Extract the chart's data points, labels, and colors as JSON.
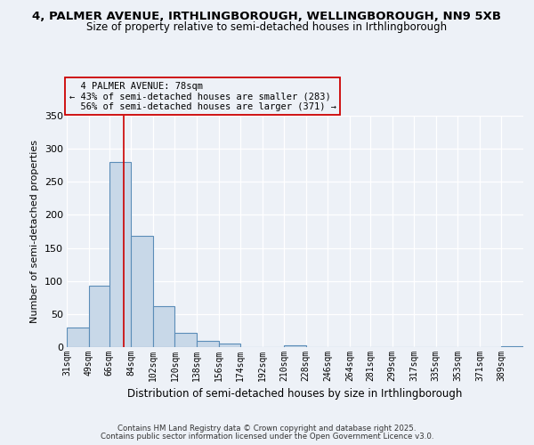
{
  "title_line1": "4, PALMER AVENUE, IRTHLINGBOROUGH, WELLINGBOROUGH, NN9 5XB",
  "title_line2": "Size of property relative to semi-detached houses in Irthlingborough",
  "xlabel": "Distribution of semi-detached houses by size in Irthlingborough",
  "ylabel": "Number of semi-detached properties",
  "bin_labels": [
    "31sqm",
    "49sqm",
    "66sqm",
    "84sqm",
    "102sqm",
    "120sqm",
    "138sqm",
    "156sqm",
    "174sqm",
    "192sqm",
    "210sqm",
    "228sqm",
    "246sqm",
    "264sqm",
    "281sqm",
    "299sqm",
    "317sqm",
    "335sqm",
    "353sqm",
    "371sqm",
    "389sqm"
  ],
  "bin_edges": [
    31,
    49,
    66,
    84,
    102,
    120,
    138,
    156,
    174,
    192,
    210,
    228,
    246,
    264,
    281,
    299,
    317,
    335,
    353,
    371,
    389
  ],
  "counts": [
    30,
    93,
    280,
    168,
    62,
    21,
    10,
    5,
    0,
    0,
    3,
    0,
    0,
    0,
    0,
    0,
    0,
    0,
    0,
    0,
    2
  ],
  "ylim": [
    0,
    350
  ],
  "yticks": [
    0,
    50,
    100,
    150,
    200,
    250,
    300,
    350
  ],
  "property_size": 78,
  "property_label": "4 PALMER AVENUE: 78sqm",
  "pct_smaller": 43,
  "n_smaller": 283,
  "pct_larger": 56,
  "n_larger": 371,
  "bar_facecolor": "#c8d8e8",
  "bar_edgecolor": "#5b8db8",
  "vline_color": "#cc0000",
  "annotation_box_edgecolor": "#cc0000",
  "background_color": "#edf1f7",
  "grid_color": "#ffffff",
  "footer_line1": "Contains HM Land Registry data © Crown copyright and database right 2025.",
  "footer_line2": "Contains public sector information licensed under the Open Government Licence v3.0."
}
